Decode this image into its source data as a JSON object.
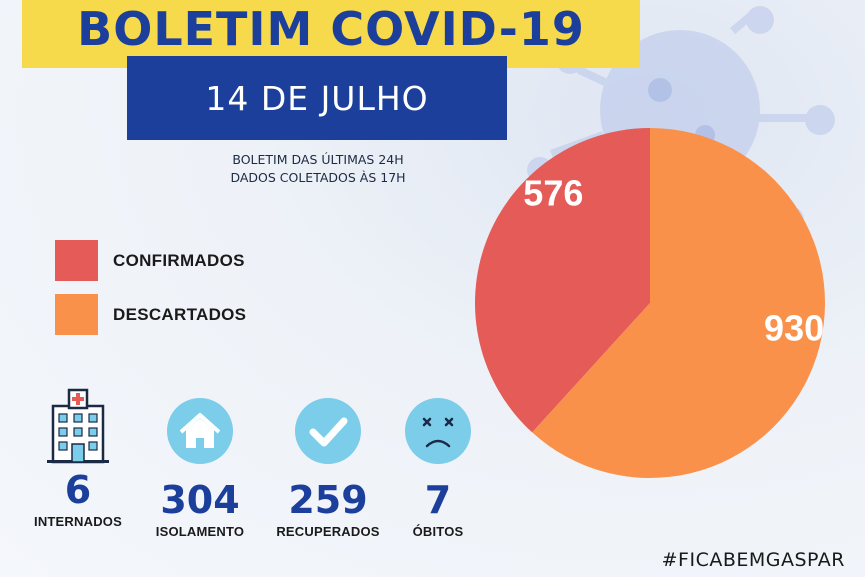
{
  "header": {
    "title": "BOLETIM COVID-19",
    "date": "14 DE JULHO",
    "subtitle_line1": "BOLETIM DAS ÚLTIMAS 24H",
    "subtitle_line2": "DADOS COLETADOS ÀS  17H"
  },
  "colors": {
    "title_band": "#f7d94c",
    "navy": "#1b3f9b",
    "confirmed": "#e45b57",
    "discarded": "#f9914a",
    "icon_circle": "#7bcde9"
  },
  "chart_data": {
    "type": "pie",
    "categories": [
      "CONFIRMADOS",
      "DESCARTADOS"
    ],
    "values": [
      576,
      930
    ],
    "legend_placement": "left"
  },
  "stats": [
    {
      "icon": "hospital-icon",
      "value": "6",
      "label": "INTERNADOS"
    },
    {
      "icon": "house-icon",
      "value": "304",
      "label": "ISOLAMENTO"
    },
    {
      "icon": "checkmark-icon",
      "value": "259",
      "label": "RECUPERADOS"
    },
    {
      "icon": "sad-face-icon",
      "value": "7",
      "label": "ÓBITOS"
    }
  ],
  "footer": {
    "hashtag": "#FICABEMGASPAR"
  }
}
